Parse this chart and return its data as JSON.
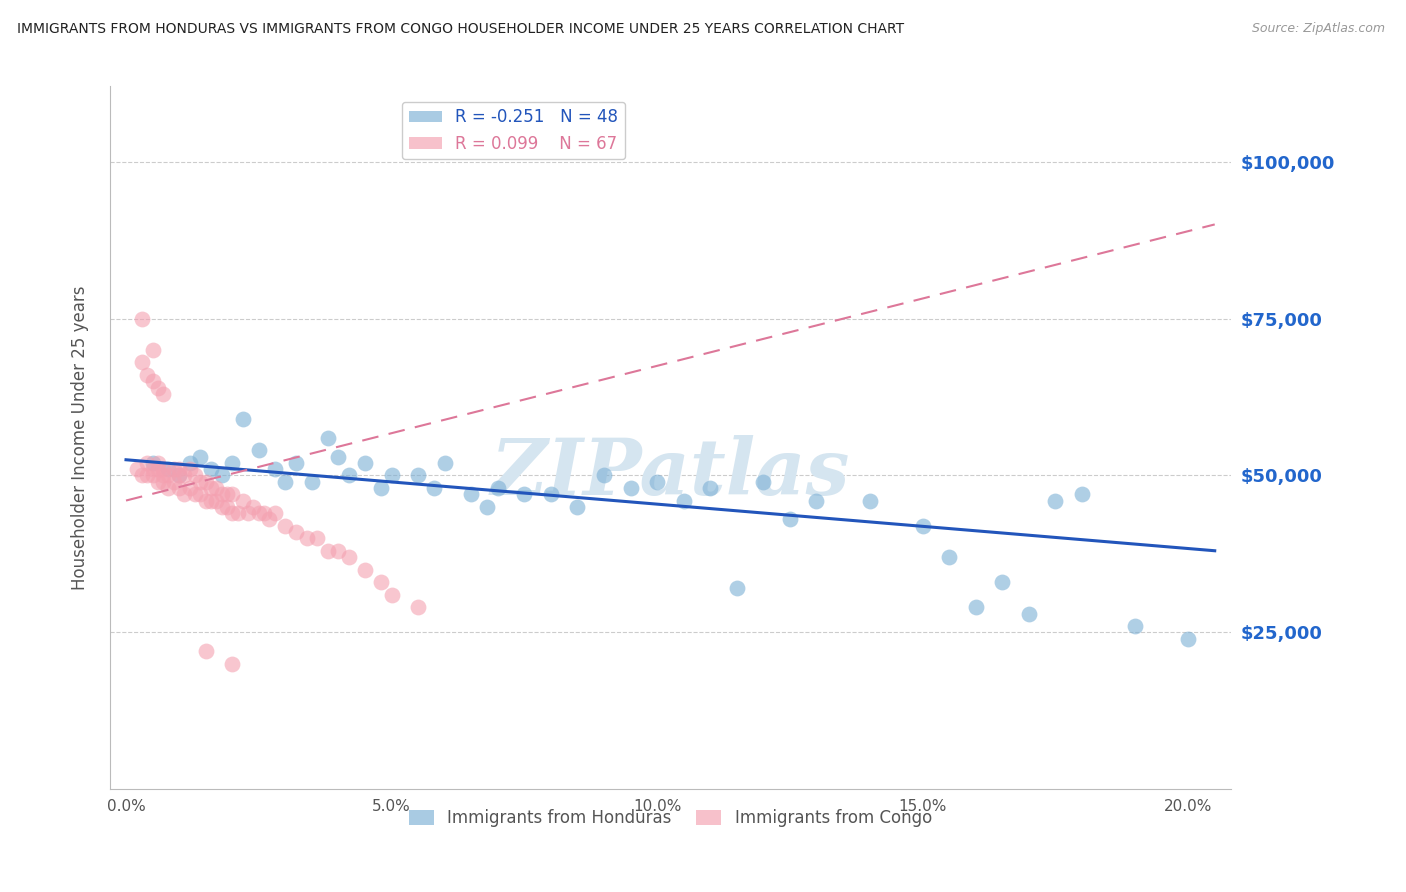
{
  "title": "IMMIGRANTS FROM HONDURAS VS IMMIGRANTS FROM CONGO HOUSEHOLDER INCOME UNDER 25 YEARS CORRELATION CHART",
  "source": "Source: ZipAtlas.com",
  "ylabel": "Householder Income Under 25 years",
  "xlabel_ticks": [
    "0.0%",
    "5.0%",
    "10.0%",
    "15.0%",
    "20.0%"
  ],
  "xlabel_vals": [
    0.0,
    0.05,
    0.1,
    0.15,
    0.2
  ],
  "ylabel_ticks": [
    "$25,000",
    "$50,000",
    "$75,000",
    "$100,000"
  ],
  "ylabel_vals": [
    25000,
    50000,
    75000,
    100000
  ],
  "ylim": [
    0,
    112000
  ],
  "xlim": [
    -0.003,
    0.208
  ],
  "honduras_R": -0.251,
  "honduras_N": 48,
  "congo_R": 0.099,
  "congo_N": 67,
  "honduras_color": "#7BAFD4",
  "congo_color": "#F4A0B0",
  "honduras_line_color": "#2255BB",
  "congo_line_color": "#DD7799",
  "watermark": "ZIPatlas",
  "watermark_color": "#D5E5F0",
  "background_color": "#FFFFFF",
  "grid_color": "#CCCCCC",
  "title_color": "#222222",
  "axis_label_color": "#555555",
  "right_tick_color": "#2266CC",
  "honduras_scatter_x": [
    0.005,
    0.008,
    0.01,
    0.012,
    0.014,
    0.016,
    0.018,
    0.02,
    0.022,
    0.025,
    0.028,
    0.03,
    0.032,
    0.035,
    0.038,
    0.04,
    0.042,
    0.045,
    0.048,
    0.05,
    0.055,
    0.058,
    0.06,
    0.065,
    0.068,
    0.07,
    0.075,
    0.08,
    0.085,
    0.09,
    0.095,
    0.1,
    0.105,
    0.11,
    0.115,
    0.12,
    0.125,
    0.13,
    0.14,
    0.15,
    0.155,
    0.16,
    0.165,
    0.17,
    0.175,
    0.18,
    0.19,
    0.2
  ],
  "honduras_scatter_y": [
    52000,
    51000,
    50000,
    52000,
    53000,
    51000,
    50000,
    52000,
    59000,
    54000,
    51000,
    49000,
    52000,
    49000,
    56000,
    53000,
    50000,
    52000,
    48000,
    50000,
    50000,
    48000,
    52000,
    47000,
    45000,
    48000,
    47000,
    47000,
    45000,
    50000,
    48000,
    49000,
    46000,
    48000,
    32000,
    49000,
    43000,
    46000,
    46000,
    42000,
    37000,
    29000,
    33000,
    28000,
    46000,
    47000,
    26000,
    24000
  ],
  "congo_scatter_x": [
    0.002,
    0.003,
    0.003,
    0.004,
    0.004,
    0.005,
    0.005,
    0.005,
    0.006,
    0.006,
    0.006,
    0.007,
    0.007,
    0.007,
    0.008,
    0.008,
    0.009,
    0.009,
    0.01,
    0.01,
    0.01,
    0.011,
    0.011,
    0.012,
    0.012,
    0.013,
    0.013,
    0.014,
    0.014,
    0.015,
    0.015,
    0.016,
    0.016,
    0.017,
    0.017,
    0.018,
    0.018,
    0.019,
    0.019,
    0.02,
    0.02,
    0.021,
    0.022,
    0.023,
    0.024,
    0.025,
    0.026,
    0.027,
    0.028,
    0.03,
    0.032,
    0.034,
    0.036,
    0.038,
    0.04,
    0.042,
    0.045,
    0.048,
    0.05,
    0.055,
    0.003,
    0.004,
    0.005,
    0.006,
    0.007,
    0.015,
    0.02
  ],
  "congo_scatter_y": [
    51000,
    50000,
    68000,
    50000,
    52000,
    50000,
    51000,
    65000,
    49000,
    51000,
    52000,
    49000,
    50000,
    51000,
    48000,
    50000,
    49000,
    51000,
    48000,
    50000,
    51000,
    47000,
    50000,
    48000,
    51000,
    47000,
    50000,
    47000,
    49000,
    46000,
    49000,
    46000,
    48000,
    46000,
    48000,
    45000,
    47000,
    45000,
    47000,
    44000,
    47000,
    44000,
    46000,
    44000,
    45000,
    44000,
    44000,
    43000,
    44000,
    42000,
    41000,
    40000,
    40000,
    38000,
    38000,
    37000,
    35000,
    33000,
    31000,
    29000,
    75000,
    66000,
    70000,
    64000,
    63000,
    22000,
    20000
  ]
}
